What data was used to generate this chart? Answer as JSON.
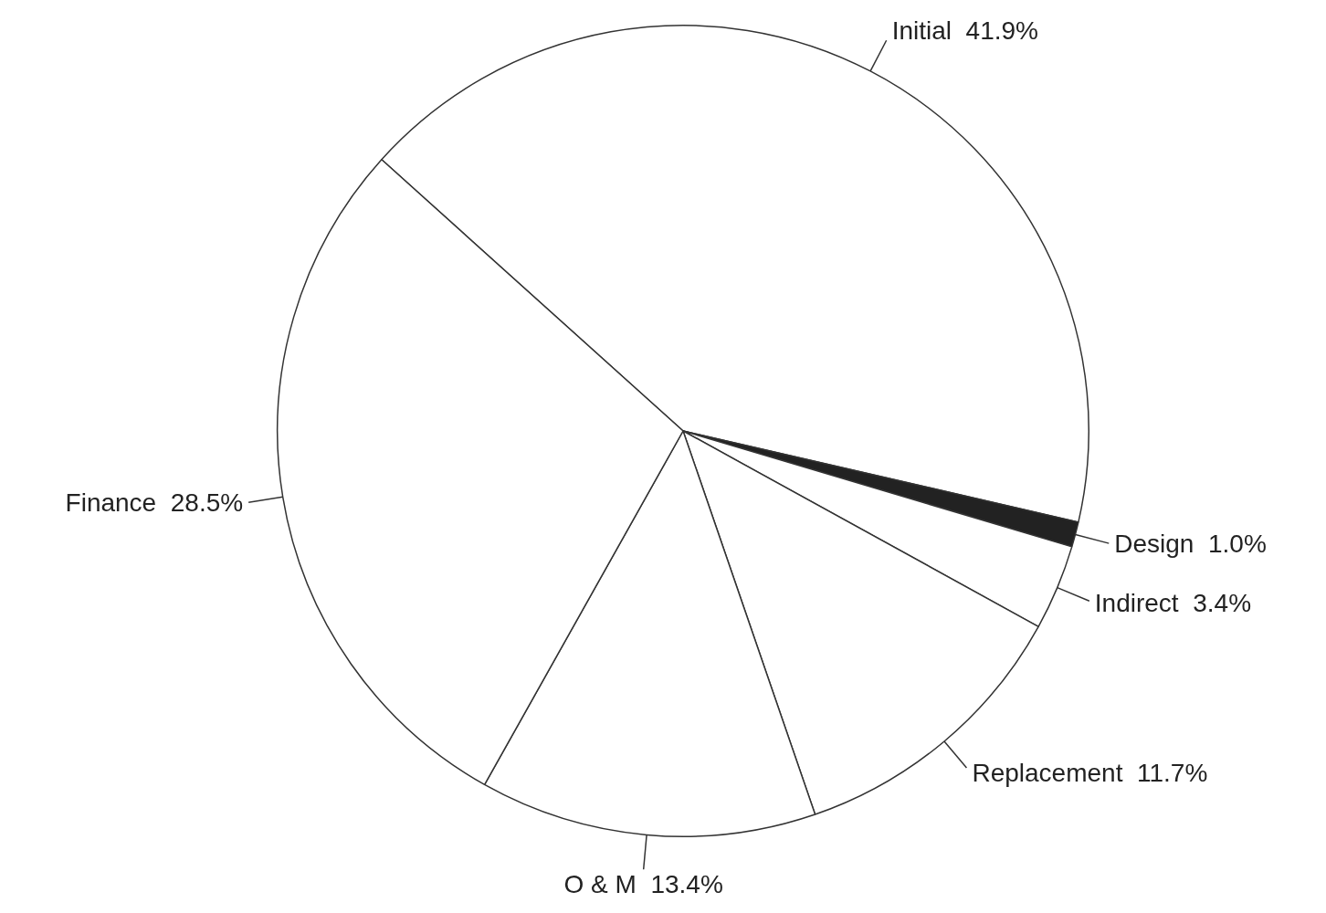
{
  "chart_data": {
    "type": "pie",
    "categories": [
      "Initial",
      "Design",
      "Indirect",
      "Replacement",
      "O & M",
      "Finance"
    ],
    "values": [
      41.9,
      1.0,
      3.4,
      11.7,
      13.4,
      28.5
    ],
    "colors": [
      "#ffffff",
      "#222222",
      "#ffffff",
      "#ffffff",
      "#ffffff",
      "#ffffff"
    ],
    "value_labels": [
      "41.9%",
      "1.0%",
      "3.4%",
      "11.7%",
      "13.4%",
      "28.5%"
    ],
    "legend": false
  }
}
